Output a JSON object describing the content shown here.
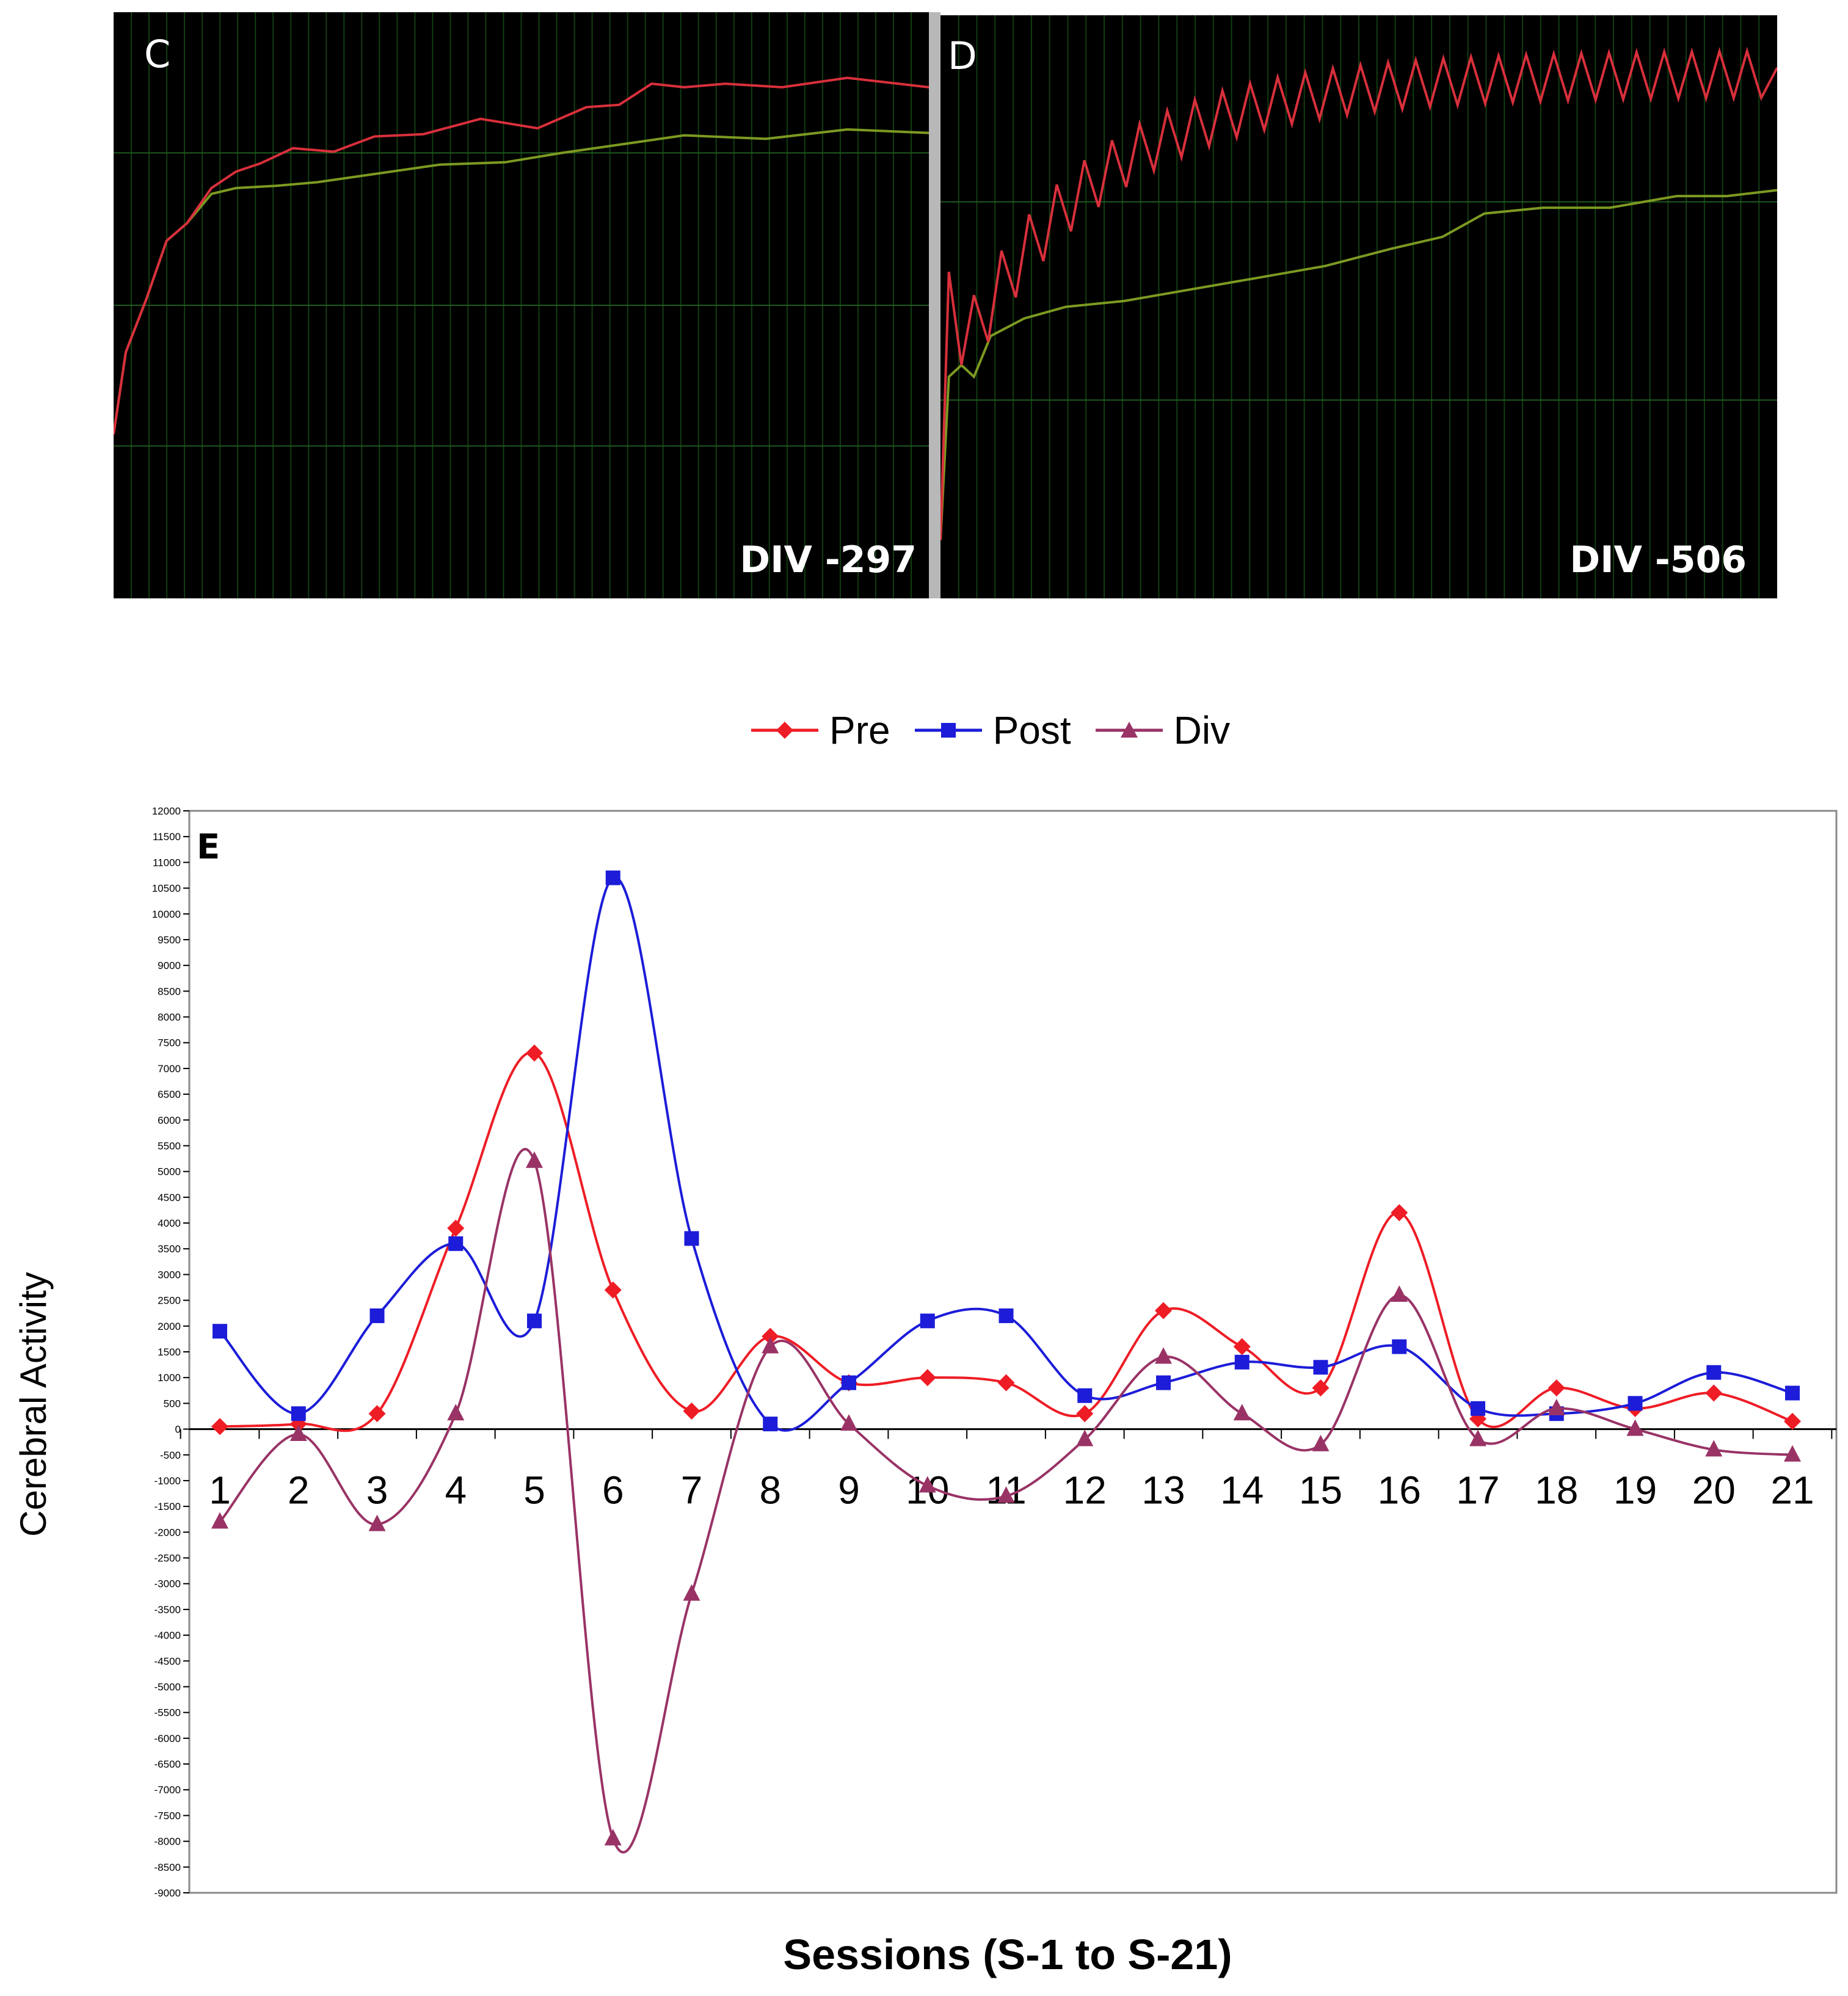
{
  "panels": {
    "c": {
      "letter": "C",
      "label": "DIV -297"
    },
    "d": {
      "letter": "D",
      "label": "DIV -506"
    }
  },
  "colors": {
    "pre": "#ee1c25",
    "post": "#1c1cd9",
    "div": "#993366",
    "trace_red": "#d8303c",
    "trace_green": "#7c9a22",
    "panel_grid": "#123d12"
  },
  "chart_data": {
    "type": "line",
    "panel_letter": "E",
    "xlabel": "Sessions (S-1 to S-21)",
    "ylabel": "Cerebral Activity",
    "categories": [
      "1",
      "2",
      "3",
      "4",
      "5",
      "6",
      "7",
      "8",
      "9",
      "10",
      "11",
      "12",
      "13",
      "14",
      "15",
      "16",
      "17",
      "18",
      "19",
      "20",
      "21"
    ],
    "ylim": [
      -9000,
      12000
    ],
    "ytick_step": 500,
    "legend_position": "top-center",
    "smoothed": true,
    "series": [
      {
        "name": "Pre",
        "marker": "diamond",
        "values": [
          50,
          100,
          300,
          3900,
          7300,
          2700,
          350,
          1800,
          900,
          1000,
          900,
          300,
          2300,
          1600,
          800,
          4200,
          200,
          800,
          400,
          700,
          150
        ]
      },
      {
        "name": "Post",
        "marker": "square",
        "values": [
          1900,
          300,
          2200,
          3600,
          2100,
          10700,
          3700,
          100,
          900,
          2100,
          2200,
          650,
          900,
          1300,
          1200,
          1600,
          400,
          300,
          500,
          1100,
          700
        ]
      },
      {
        "name": "Div",
        "marker": "triangle",
        "values": [
          -1800,
          -100,
          -1850,
          300,
          5200,
          -7950,
          -3200,
          1600,
          100,
          -1100,
          -1300,
          -200,
          1400,
          300,
          -300,
          2600,
          -200,
          400,
          0,
          -400,
          -500
        ]
      }
    ]
  }
}
